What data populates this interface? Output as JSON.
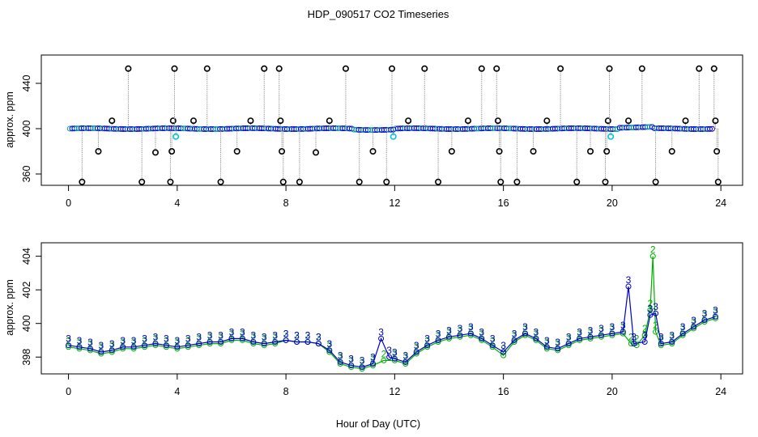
{
  "chart_data": [
    {
      "type": "scatter",
      "title": "HDP_090517  CO2 Timeseries",
      "xlabel": "",
      "ylabel": "approx. ppm",
      "xlim": [
        -1.0,
        24.8
      ],
      "ylim": [
        350,
        465
      ],
      "xticks": [
        "0",
        "4",
        "8",
        "12",
        "16",
        "20",
        "24"
      ],
      "yticks": [
        "360",
        "400",
        "440"
      ],
      "grid": false,
      "markers": "open circles",
      "series": [
        {
          "color": "#000000",
          "points": [
            [
              0.5,
              353
            ],
            [
              1.1,
              380
            ],
            [
              1.6,
              407
            ],
            [
              2.2,
              453
            ],
            [
              2.7,
              353
            ],
            [
              3.2,
              379
            ],
            [
              3.75,
              353
            ],
            [
              3.8,
              380
            ],
            [
              3.85,
              407
            ],
            [
              3.9,
              453
            ],
            [
              4.6,
              407
            ],
            [
              5.1,
              453
            ],
            [
              5.6,
              353
            ],
            [
              6.2,
              380
            ],
            [
              6.7,
              407
            ],
            [
              7.2,
              453
            ],
            [
              7.75,
              453
            ],
            [
              7.8,
              407
            ],
            [
              7.85,
              380
            ],
            [
              7.9,
              353
            ],
            [
              8.5,
              353
            ],
            [
              9.1,
              379
            ],
            [
              9.6,
              407
            ],
            [
              10.2,
              453
            ],
            [
              10.7,
              353
            ],
            [
              11.2,
              380
            ],
            [
              11.7,
              353
            ],
            [
              11.9,
              453
            ],
            [
              12.5,
              407
            ],
            [
              13.1,
              453
            ],
            [
              13.6,
              353
            ],
            [
              14.1,
              380
            ],
            [
              14.7,
              407
            ],
            [
              15.2,
              453
            ],
            [
              15.75,
              453
            ],
            [
              15.8,
              407
            ],
            [
              15.85,
              380
            ],
            [
              15.9,
              353
            ],
            [
              16.5,
              353
            ],
            [
              17.1,
              380
            ],
            [
              17.6,
              407
            ],
            [
              18.1,
              453
            ],
            [
              18.7,
              353
            ],
            [
              19.2,
              380
            ],
            [
              19.75,
              353
            ],
            [
              19.8,
              380
            ],
            [
              19.85,
              407
            ],
            [
              19.9,
              453
            ],
            [
              20.6,
              407
            ],
            [
              21.1,
              453
            ],
            [
              21.6,
              353
            ],
            [
              22.2,
              380
            ],
            [
              22.7,
              407
            ],
            [
              23.2,
              453
            ],
            [
              23.75,
              453
            ],
            [
              23.8,
              407
            ],
            [
              23.85,
              380
            ],
            [
              23.9,
              353
            ]
          ]
        },
        {
          "color": "#00c8d8",
          "points": [
            [
              3.95,
              393
            ],
            [
              11.95,
              393
            ],
            [
              19.95,
              393
            ]
          ]
        }
      ]
    },
    {
      "type": "line",
      "title": "",
      "xlabel": "Hour of Day (UTC)",
      "ylabel": "approx. ppm",
      "xlim": [
        -1.0,
        24.8
      ],
      "ylim": [
        397.0,
        404.8
      ],
      "xticks": [
        "0",
        "4",
        "8",
        "12",
        "16",
        "20",
        "24"
      ],
      "yticks": [
        "398",
        "400",
        "402",
        "404"
      ],
      "grid": false,
      "markers": "open circles with digit labels 2 and 3",
      "series": [
        {
          "color": "#00b000",
          "label_char": "2",
          "x": [
            0.0,
            0.4,
            0.8,
            1.2,
            1.6,
            2.0,
            2.4,
            2.8,
            3.2,
            3.6,
            4.0,
            4.4,
            4.8,
            5.2,
            5.6,
            6.0,
            6.4,
            6.8,
            7.2,
            7.6,
            8.0,
            8.4,
            8.8,
            9.2,
            9.6,
            10.0,
            10.4,
            10.8,
            11.2,
            11.6,
            12.0,
            12.4,
            12.8,
            13.2,
            13.6,
            14.0,
            14.4,
            14.8,
            15.2,
            15.6,
            16.0,
            16.4,
            16.8,
            17.2,
            17.6,
            18.0,
            18.4,
            18.8,
            19.2,
            19.6,
            20.0,
            20.4,
            20.7,
            20.9,
            21.2,
            21.4,
            21.5,
            21.6,
            21.8,
            22.2,
            22.6,
            23.0,
            23.4,
            23.8
          ],
          "y": [
            398.6,
            398.5,
            398.4,
            398.2,
            398.3,
            398.5,
            398.5,
            398.6,
            398.7,
            398.6,
            398.5,
            398.6,
            398.7,
            398.8,
            398.8,
            399.0,
            399.0,
            398.8,
            398.7,
            398.8,
            399.0,
            398.9,
            398.9,
            398.8,
            398.3,
            397.6,
            397.4,
            397.3,
            397.5,
            397.8,
            397.8,
            397.6,
            398.2,
            398.6,
            398.9,
            399.1,
            399.2,
            399.3,
            399.0,
            398.6,
            398.1,
            398.9,
            399.3,
            399.0,
            398.5,
            398.4,
            398.7,
            399.0,
            399.1,
            399.2,
            399.3,
            399.4,
            398.8,
            398.7,
            399.3,
            400.8,
            404.0,
            399.5,
            398.7,
            398.8,
            399.3,
            399.7,
            400.1,
            400.3
          ]
        },
        {
          "color": "#0000c8",
          "label_char": "3",
          "x": [
            0.0,
            0.4,
            0.8,
            1.2,
            1.6,
            2.0,
            2.4,
            2.8,
            3.2,
            3.6,
            4.0,
            4.4,
            4.8,
            5.2,
            5.6,
            6.0,
            6.4,
            6.8,
            7.2,
            7.6,
            8.0,
            8.4,
            8.8,
            9.2,
            9.6,
            10.0,
            10.4,
            10.8,
            11.2,
            11.5,
            11.8,
            12.0,
            12.4,
            12.8,
            13.2,
            13.6,
            14.0,
            14.4,
            14.8,
            15.2,
            15.6,
            16.0,
            16.4,
            16.8,
            17.2,
            17.6,
            18.0,
            18.4,
            18.8,
            19.2,
            19.6,
            20.0,
            20.4,
            20.6,
            20.8,
            21.2,
            21.4,
            21.6,
            21.8,
            22.2,
            22.6,
            23.0,
            23.4,
            23.8
          ],
          "y": [
            398.7,
            398.6,
            398.5,
            398.3,
            398.4,
            398.6,
            398.6,
            398.7,
            398.8,
            398.7,
            398.6,
            398.7,
            398.8,
            398.9,
            398.9,
            399.1,
            399.1,
            398.9,
            398.8,
            398.9,
            399.0,
            398.9,
            398.9,
            398.8,
            398.4,
            397.7,
            397.5,
            397.4,
            397.6,
            399.1,
            398.0,
            397.9,
            397.7,
            398.3,
            398.7,
            399.0,
            399.2,
            399.3,
            399.4,
            399.1,
            398.7,
            398.3,
            399.0,
            399.4,
            399.1,
            398.6,
            398.5,
            398.8,
            399.1,
            399.2,
            399.3,
            399.4,
            399.5,
            402.2,
            398.8,
            398.9,
            400.5,
            400.6,
            398.8,
            398.9,
            399.4,
            399.8,
            400.2,
            400.4
          ]
        }
      ]
    }
  ]
}
